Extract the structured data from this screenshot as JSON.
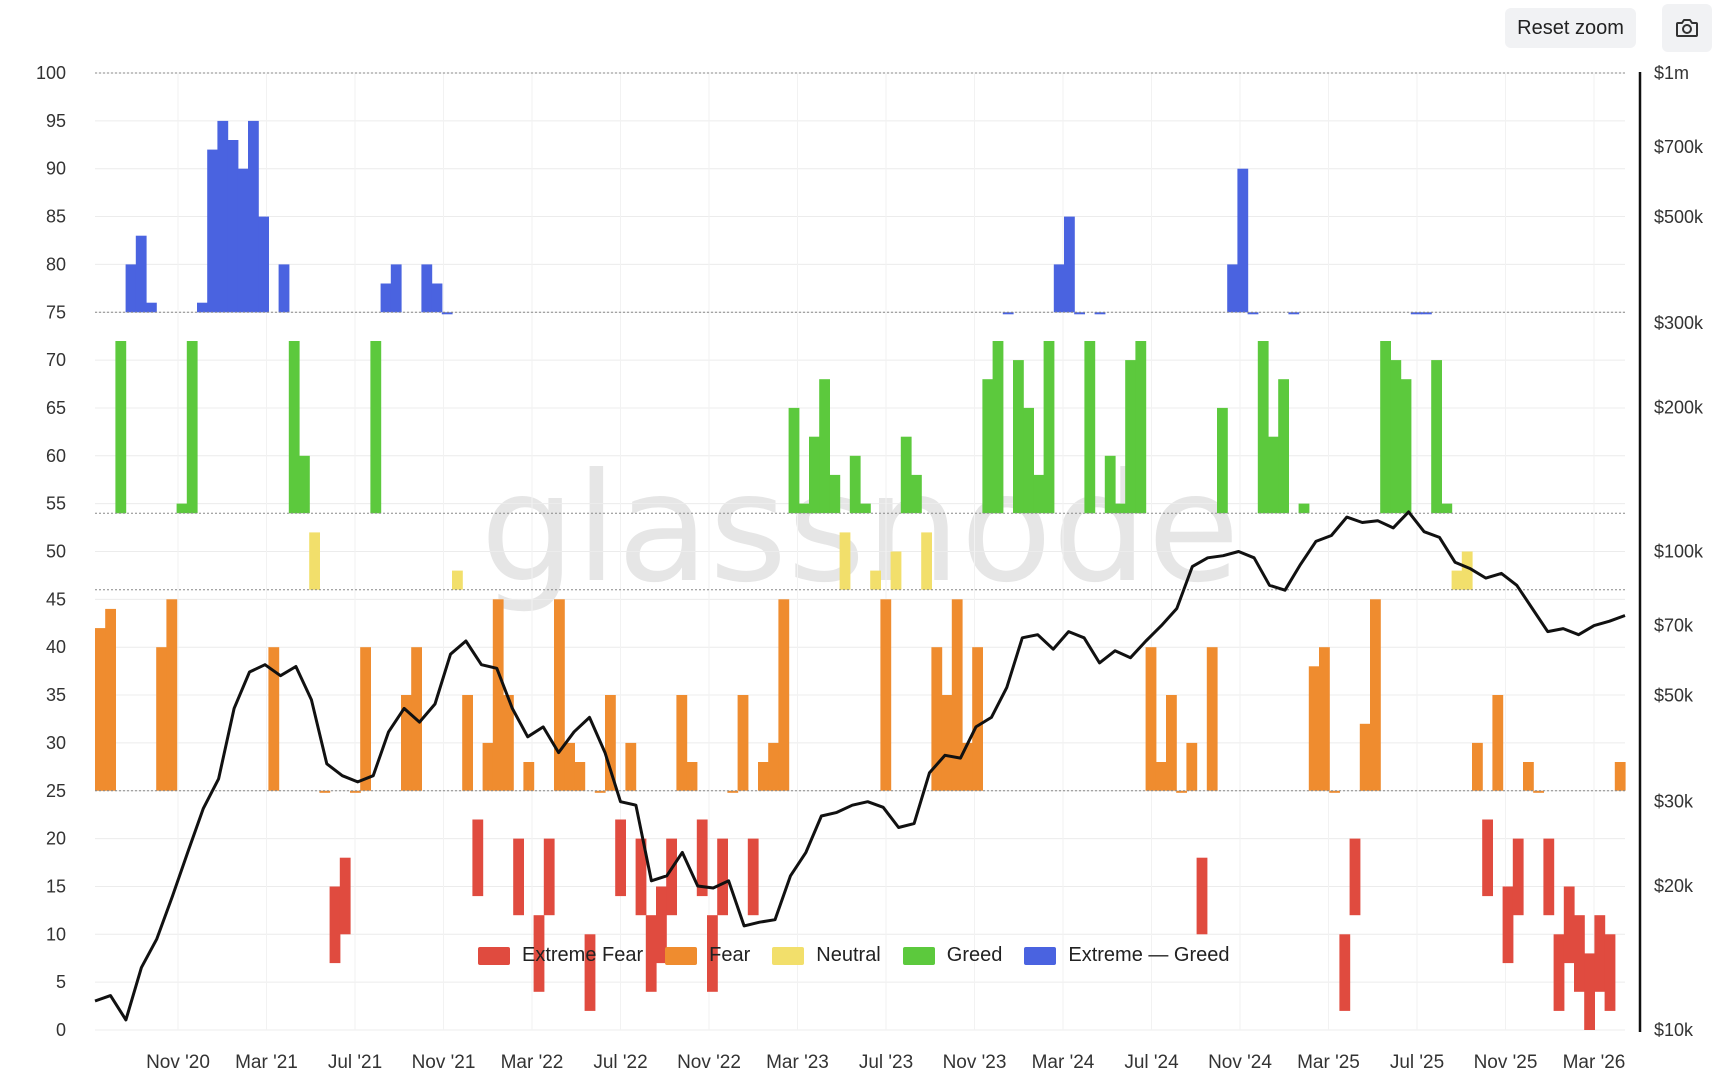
{
  "toolbar": {
    "reset_zoom_label": "Reset zoom",
    "camera_icon": "camera-icon"
  },
  "watermark": "glassnode",
  "chart_data": {
    "type": "area",
    "title": "",
    "xlabel": "",
    "ylabel": "",
    "ylim": [
      0,
      100
    ],
    "y2_scale": "log",
    "y2_lim": [
      10000,
      1000000
    ],
    "left_ticks": [
      "0",
      "5",
      "10",
      "15",
      "20",
      "25",
      "30",
      "35",
      "40",
      "45",
      "50",
      "55",
      "60",
      "65",
      "70",
      "75",
      "80",
      "85",
      "90",
      "95",
      "100"
    ],
    "right_ticks": [
      {
        "value": 10000,
        "label": "$10k"
      },
      {
        "value": 20000,
        "label": "$20k"
      },
      {
        "value": 30000,
        "label": "$30k"
      },
      {
        "value": 50000,
        "label": "$50k"
      },
      {
        "value": 70000,
        "label": "$70k"
      },
      {
        "value": 100000,
        "label": "$100k"
      },
      {
        "value": 200000,
        "label": "$200k"
      },
      {
        "value": 300000,
        "label": "$300k"
      },
      {
        "value": 500000,
        "label": "$500k"
      },
      {
        "value": 700000,
        "label": "$700k"
      },
      {
        "value": 1000000,
        "label": "$1m"
      }
    ],
    "x_ticks": [
      "Nov '20",
      "Mar '21",
      "Jul '21",
      "Nov '21",
      "Mar '22",
      "Jul '22",
      "Nov '22",
      "Mar '23",
      "Jul '23",
      "Nov '23",
      "Mar '24",
      "Jul '24",
      "Nov '24",
      "Mar '25",
      "Jul '25",
      "Nov '25",
      "Mar '26"
    ],
    "x_start": "2020-08",
    "x_end": "2026-04",
    "threshold_lines": [
      25,
      46,
      54,
      75,
      100
    ],
    "legend_position": "bottom-center",
    "legend": [
      {
        "name": "Extreme Fear",
        "color": "#e04b3f"
      },
      {
        "name": "Fear",
        "color": "#ef8c2f"
      },
      {
        "name": "Neutral",
        "color": "#f2df6b"
      },
      {
        "name": "Greed",
        "color": "#5cc93d"
      },
      {
        "name": "Extreme — Greed",
        "color": "#4a63e0"
      }
    ],
    "series": [
      {
        "name": "Fear & Greed Index",
        "axis": "left",
        "values": [
          42,
          44,
          72,
          80,
          83,
          76,
          40,
          45,
          55,
          72,
          76,
          92,
          95,
          93,
          90,
          95,
          85,
          40,
          80,
          72,
          60,
          52,
          25,
          15,
          18,
          25,
          40,
          72,
          78,
          80,
          35,
          40,
          80,
          78,
          75,
          48,
          35,
          22,
          30,
          45,
          35,
          20,
          28,
          12,
          20,
          45,
          30,
          28,
          10,
          25,
          35,
          22,
          30,
          20,
          12,
          15,
          20,
          35,
          28,
          22,
          12,
          20,
          25,
          35,
          20,
          28,
          30,
          45,
          65,
          55,
          62,
          68,
          58,
          52,
          60,
          55,
          48,
          45,
          50,
          62,
          58,
          52,
          40,
          35,
          45,
          30,
          40,
          68,
          72,
          75,
          70,
          65,
          58,
          72,
          80,
          85,
          75,
          72,
          75,
          60,
          55,
          70,
          72,
          40,
          28,
          35,
          25,
          30,
          18,
          40,
          65,
          80,
          90,
          75,
          72,
          62,
          68,
          75,
          55,
          38,
          40,
          25,
          10,
          20,
          32,
          45,
          72,
          70,
          68,
          75,
          75,
          70,
          55,
          48,
          50,
          30,
          22,
          35,
          15,
          20,
          28,
          25,
          20,
          10,
          15,
          12,
          8,
          12,
          10,
          28
        ]
      },
      {
        "name": "BTC Price",
        "axis": "right",
        "values": [
          11500,
          11800,
          10500,
          13500,
          15500,
          19000,
          23500,
          29000,
          33500,
          47000,
          56000,
          58000,
          55000,
          57500,
          49000,
          36000,
          34000,
          33000,
          34000,
          42000,
          47000,
          44000,
          48000,
          61000,
          65000,
          58000,
          57000,
          47000,
          41000,
          43000,
          38000,
          42000,
          45000,
          38000,
          30000,
          29500,
          20500,
          21000,
          23500,
          20000,
          19800,
          20500,
          16500,
          16800,
          17000,
          21000,
          23500,
          28000,
          28500,
          29500,
          30000,
          29200,
          26500,
          27000,
          34500,
          37500,
          37000,
          43000,
          45000,
          52000,
          66000,
          67000,
          62500,
          68000,
          66000,
          58500,
          62000,
          60000,
          65000,
          70000,
          76000,
          93000,
          97000,
          98000,
          100000,
          97000,
          85000,
          83000,
          94000,
          105000,
          108000,
          118000,
          115000,
          116000,
          112000,
          121000,
          110000,
          107000,
          95000,
          92000,
          88000,
          90000,
          85000,
          76000,
          68000,
          69000,
          67000,
          70000,
          71500,
          73500
        ]
      }
    ]
  }
}
